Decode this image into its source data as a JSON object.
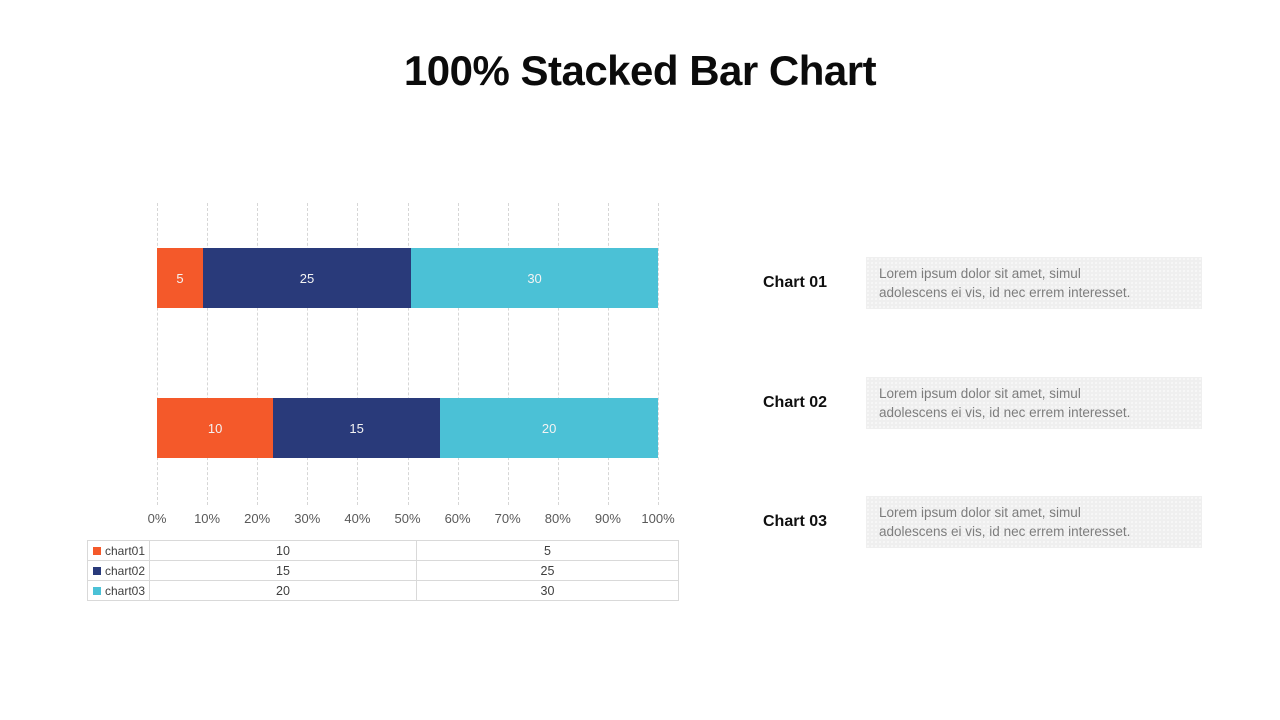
{
  "slide": {
    "title": "100% Stacked Bar Chart"
  },
  "chart_data": {
    "type": "bar",
    "variant": "horizontal-100-percent-stacked",
    "title": "100% Stacked Bar Chart",
    "categories": [
      "Chart 01",
      "Chart 02"
    ],
    "series": [
      {
        "name": "chart01",
        "color": "#f4592a",
        "values": [
          5,
          10
        ]
      },
      {
        "name": "chart02",
        "color": "#293a7a",
        "values": [
          25,
          15
        ]
      },
      {
        "name": "chart03",
        "color": "#4bc1d6",
        "values": [
          30,
          20
        ]
      }
    ],
    "x_ticks": [
      "0%",
      "10%",
      "20%",
      "30%",
      "40%",
      "50%",
      "60%",
      "70%",
      "80%",
      "90%",
      "100%"
    ],
    "xlim": [
      0,
      100
    ],
    "grid": "vertical-dashed",
    "bar_value_labels": true,
    "legend_position": "table-below"
  },
  "table": {
    "rows": [
      {
        "name": "chart01",
        "color": "#f4592a",
        "values": [
          "10",
          "5"
        ]
      },
      {
        "name": "chart02",
        "color": "#293a7a",
        "values": [
          "15",
          "25"
        ]
      },
      {
        "name": "chart03",
        "color": "#4bc1d6",
        "values": [
          "20",
          "30"
        ]
      }
    ]
  },
  "annotations": [
    {
      "label": "Chart 01",
      "line1": "Lorem  ipsum dolor  sit amet,  simul",
      "line2": "adolescens ei vis, id nec errem  interesset."
    },
    {
      "label": "Chart 02",
      "line1": "Lorem  ipsum dolor  sit amet,  simul",
      "line2": "adolescens ei vis, id nec errem  interesset."
    },
    {
      "label": "Chart 03",
      "line1": "Lorem  ipsum dolor  sit amet,  simul",
      "line2": "adolescens ei vis, id nec errem  interesset."
    }
  ],
  "colors": {
    "gridline": "#d6d6d6",
    "axis_text": "#595959",
    "table_border": "#d9d9d9",
    "annotation_box_bg": "#efefef",
    "annotation_text": "#7d7d7d"
  }
}
